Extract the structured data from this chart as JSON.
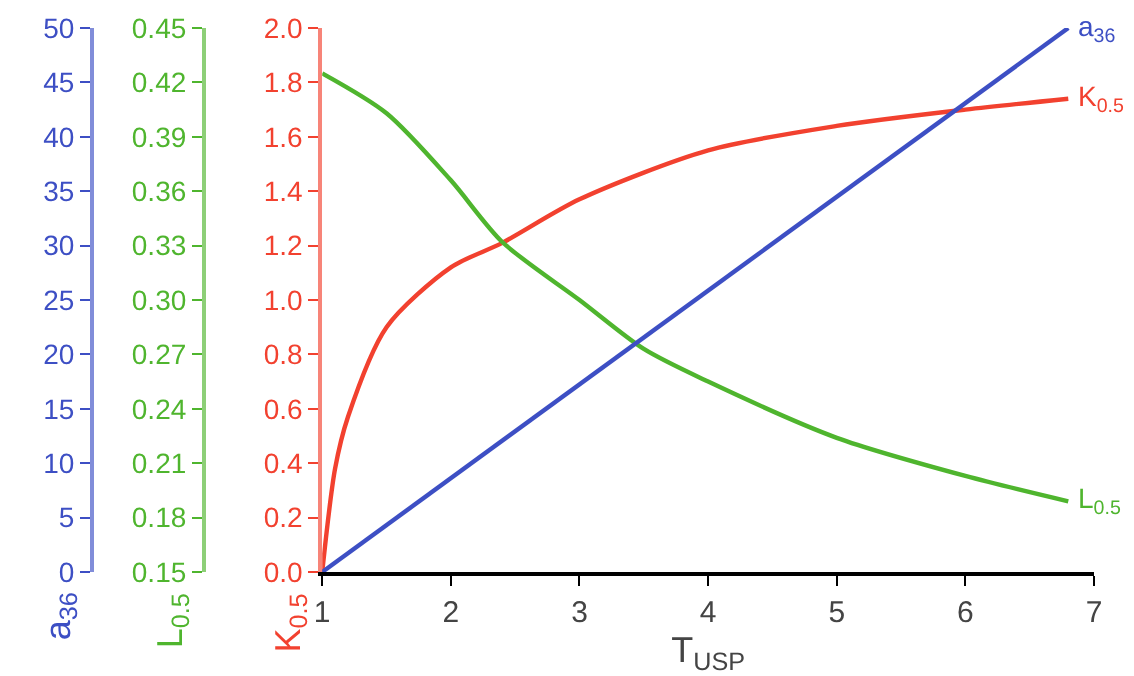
{
  "chart_data": {
    "type": "line",
    "xlabel": "T$_{USP}$",
    "ylabel": "K$_{0.5}$",
    "y2label": "L$_{0.5}$",
    "y3label": "a$_{36}$",
    "xlim": [
      1,
      7
    ],
    "xticks": [
      1,
      2,
      3,
      4,
      5,
      6,
      7
    ],
    "ylim": [
      0,
      2
    ],
    "yticks": [
      {
        "value": 0,
        "label": "0.0"
      },
      0.2,
      0.4,
      0.6,
      0.8,
      {
        "value": 1,
        "label": "1.0"
      },
      1.2,
      1.4,
      1.6,
      1.8,
      {
        "value": 2,
        "label": "2.0"
      }
    ],
    "y2lim": [
      0.15,
      0.45
    ],
    "y2ticks": [
      0.15,
      0.18,
      0.21,
      0.24,
      0.27,
      {
        "value": 0.3,
        "label": "0.30"
      },
      0.33,
      0.36,
      0.39,
      0.42,
      0.45
    ],
    "y3lim": [
      0,
      50
    ],
    "y3ticks": [
      0,
      5,
      10,
      15,
      20,
      25,
      30,
      35,
      40,
      45,
      50
    ],
    "grid": false,
    "legend": false,
    "marker": "none",
    "line_style": "solid",
    "series": [
      {
        "name": "K$_{0.5}$",
        "color": "#f2412f",
        "x": [
          1,
          1.1,
          1.2,
          1.5,
          2,
          2.4,
          3,
          4,
          5,
          6,
          6.8
        ],
        "values": [
          0,
          0.38,
          0.57,
          0.9,
          1.12,
          1.21,
          1.37,
          1.55,
          1.64,
          1.7,
          1.74
        ]
      },
      {
        "name": "L$_{0.5}$",
        "color": "#4fb52e",
        "axis": "y2",
        "x": [
          1,
          1.5,
          2,
          2.4,
          3,
          3.5,
          4,
          5,
          6,
          6.8
        ],
        "values": [
          0.425,
          0.403,
          0.366,
          0.332,
          0.3,
          0.273,
          0.255,
          0.224,
          0.203,
          0.189
        ]
      },
      {
        "name": "a$_{36}$",
        "color": "#3d4fc4",
        "axis": "y3",
        "x": [
          1,
          6.8
        ],
        "values": [
          0,
          50
        ]
      }
    ]
  }
}
